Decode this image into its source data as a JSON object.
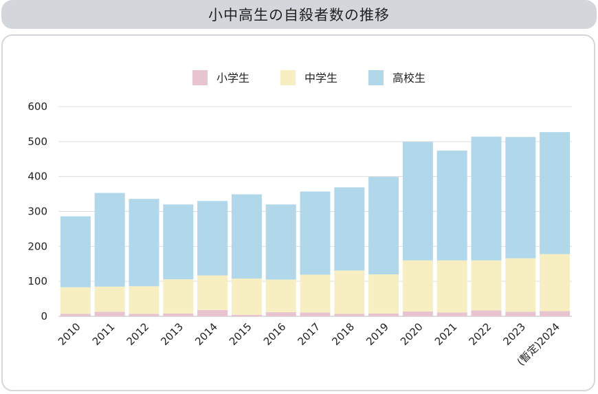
{
  "title": "小中高生の自殺者数の推移",
  "chart_data": {
    "type": "bar",
    "stacked": true,
    "categories": [
      "2010",
      "2011",
      "2012",
      "2013",
      "2014",
      "2015",
      "2016",
      "2017",
      "2018",
      "2019",
      "2020",
      "2021",
      "2022",
      "2023",
      "(暫定)2024"
    ],
    "series": [
      {
        "name": "小学生",
        "color": "#e8c3d0",
        "values": [
          7,
          13,
          7,
          8,
          18,
          4,
          12,
          11,
          7,
          8,
          14,
          11,
          17,
          13,
          15
        ]
      },
      {
        "name": "中学生",
        "color": "#f7efc2",
        "values": [
          76,
          72,
          79,
          98,
          99,
          104,
          93,
          108,
          124,
          112,
          146,
          149,
          143,
          153,
          163
        ]
      },
      {
        "name": "高校生",
        "color": "#b0d8ea",
        "values": [
          203,
          268,
          250,
          214,
          213,
          241,
          215,
          238,
          238,
          279,
          339,
          314,
          354,
          347,
          349
        ]
      }
    ],
    "ylim": [
      0,
      600
    ],
    "yticks": [
      0,
      100,
      200,
      300,
      400,
      500,
      600
    ],
    "grid": true,
    "legend_position": "top"
  }
}
